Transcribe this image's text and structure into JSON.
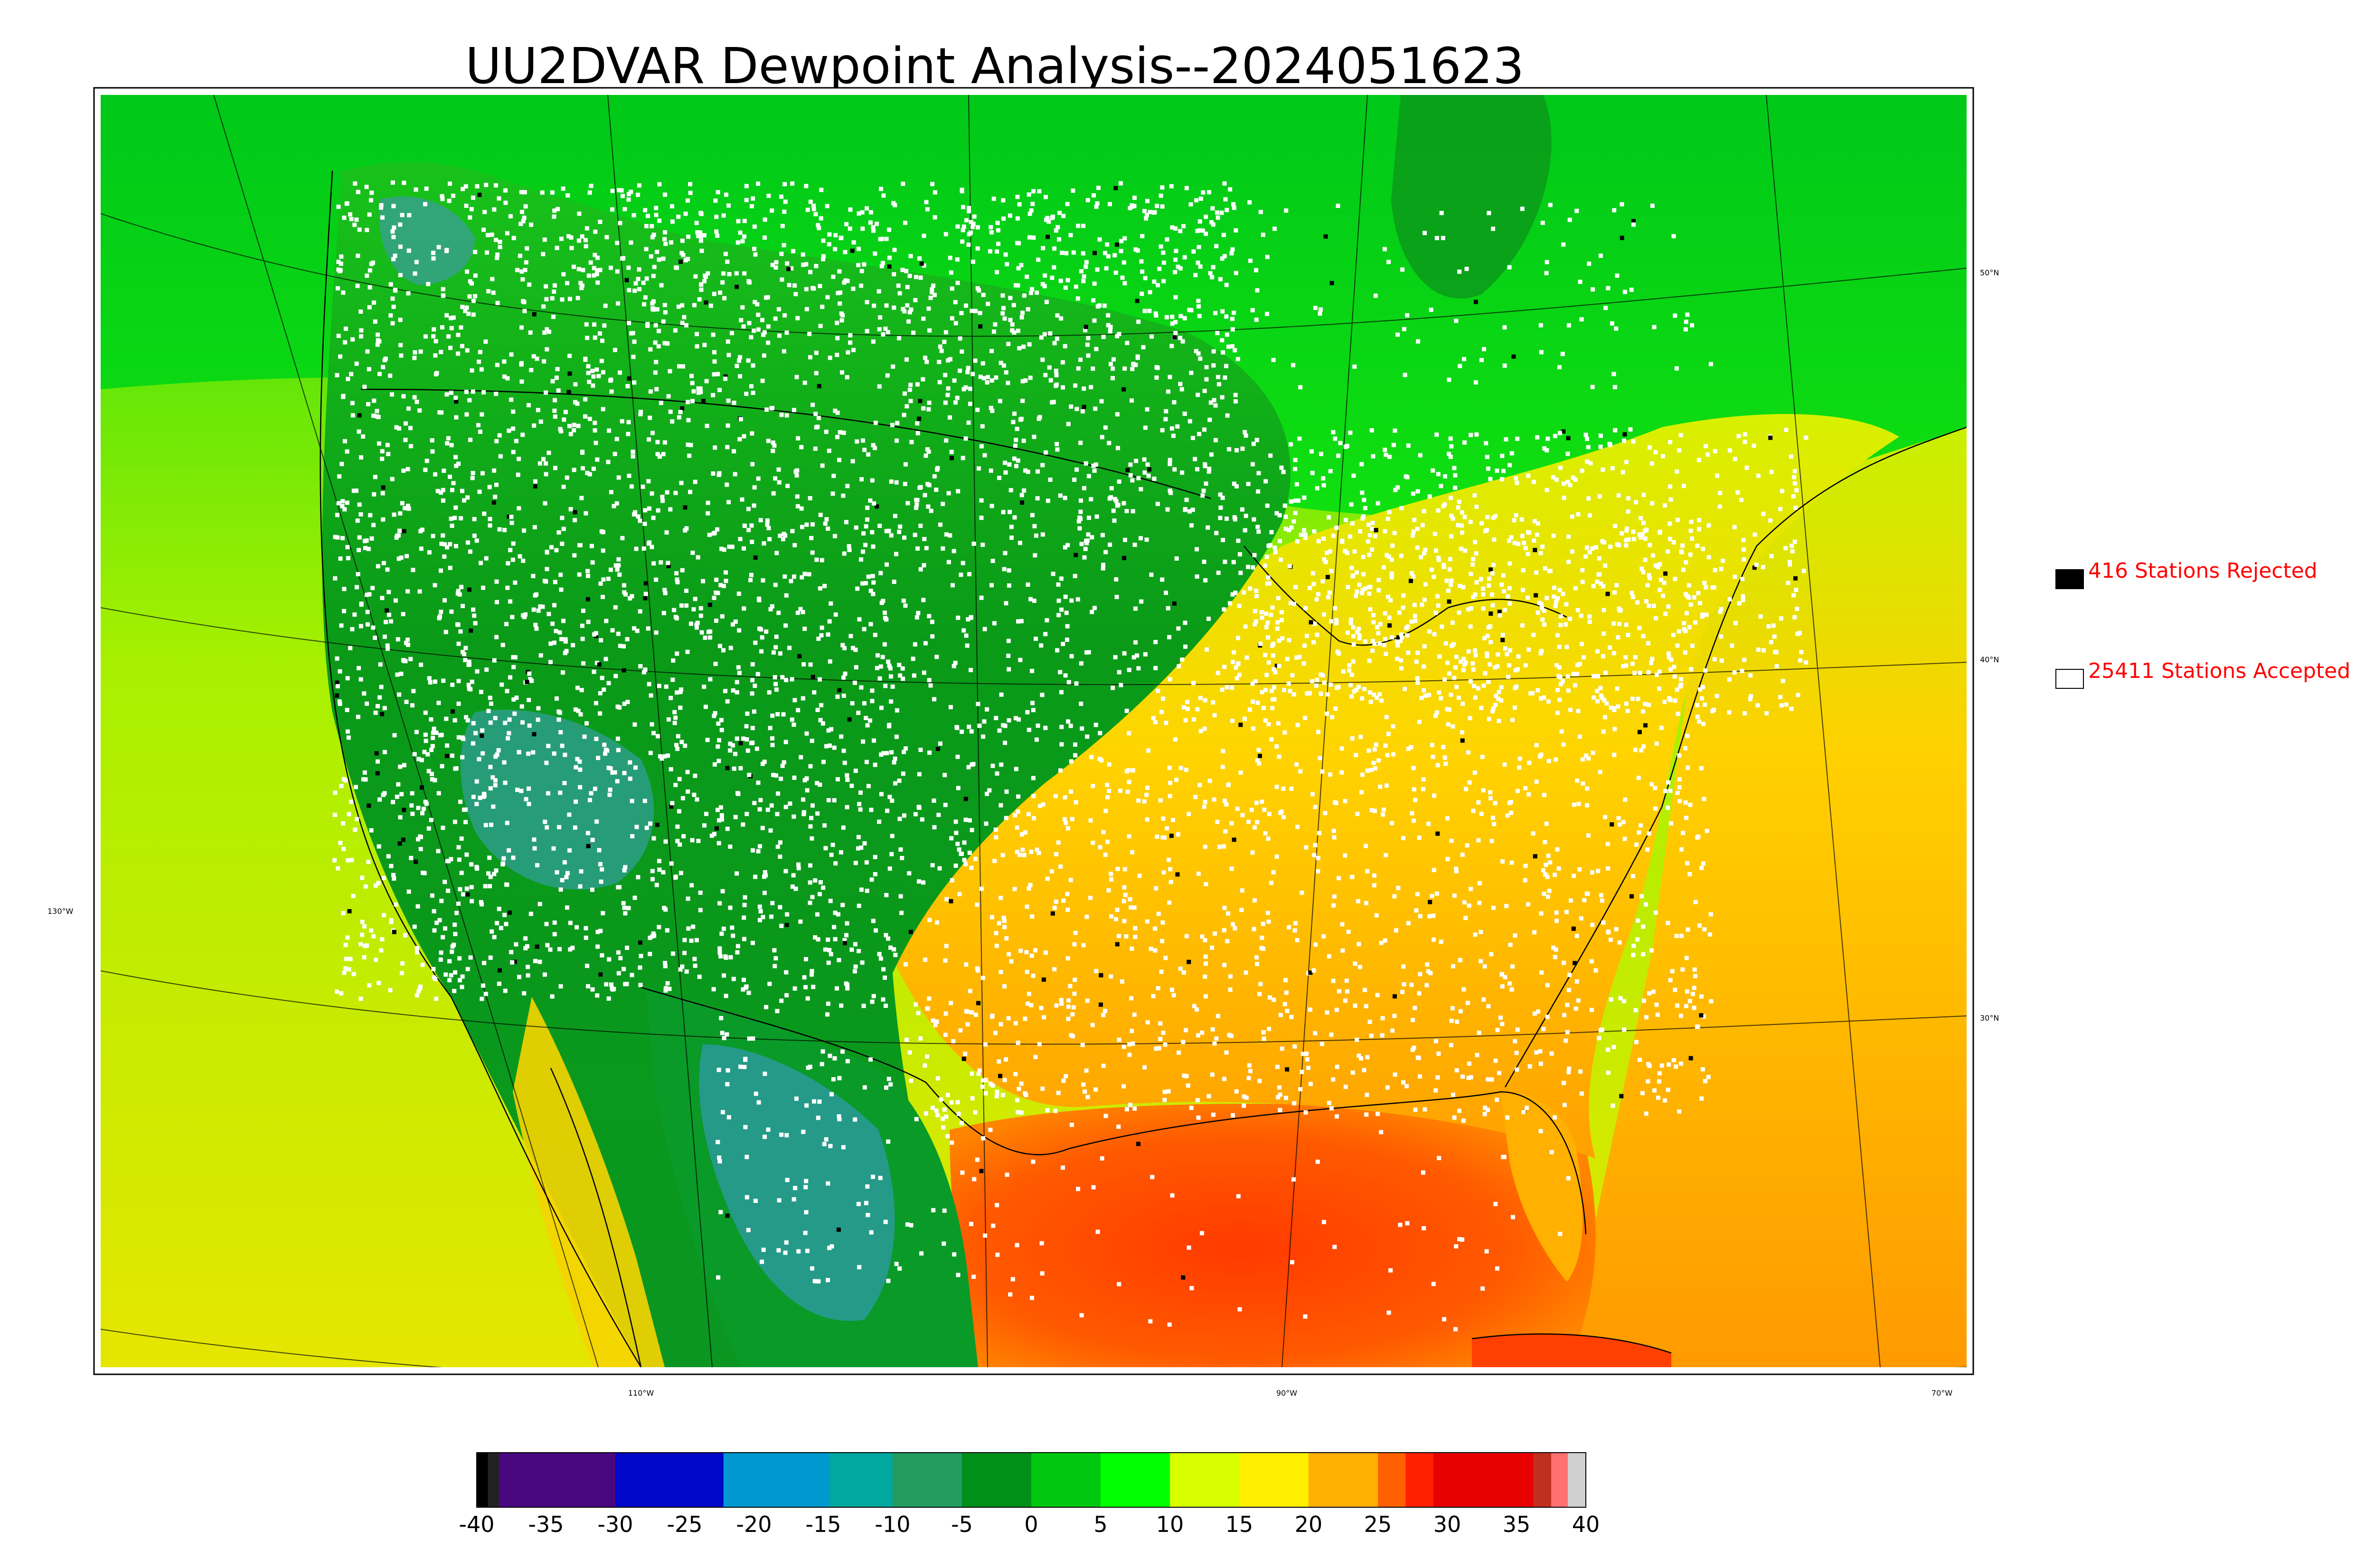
{
  "title": "UU2DVAR Dewpoint Analysis--2024051623",
  "colors": {
    "legend_text": "#ff0000",
    "rejected_marker": "#000000",
    "accepted_marker": "#ffffff",
    "frame": "#000000"
  },
  "legend": {
    "rejected": "416 Stations Rejected",
    "accepted": "25411 Stations Accepted"
  },
  "lat_labels": [
    "50°N",
    "40°N",
    "30°N"
  ],
  "lon_labels": [
    "130°W",
    "110°W",
    "90°W",
    "70°W"
  ],
  "colorbar": {
    "ticks": [
      "-40",
      "-35",
      "-30",
      "-25",
      "-20",
      "-15",
      "-10",
      "-5",
      "0",
      "5",
      "10",
      "15",
      "20",
      "25",
      "30",
      "35",
      "40"
    ],
    "range": [
      -40,
      40
    ],
    "segments": [
      {
        "from": -40,
        "to": -39.2,
        "color": "#000000"
      },
      {
        "from": -39.2,
        "to": -38.4,
        "color": "#222222"
      },
      {
        "from": -38.4,
        "to": -30,
        "color": "#4a0880"
      },
      {
        "from": -30,
        "to": -22.2,
        "color": "#0008c8"
      },
      {
        "from": -22.2,
        "to": -14.6,
        "color": "#0098d0"
      },
      {
        "from": -14.6,
        "to": -10,
        "color": "#00a8a0"
      },
      {
        "from": -10,
        "to": -5,
        "color": "#229c60"
      },
      {
        "from": -5,
        "to": 0,
        "color": "#00901a"
      },
      {
        "from": 0,
        "to": 5,
        "color": "#00c810"
      },
      {
        "from": 5,
        "to": 10,
        "color": "#00ff00"
      },
      {
        "from": 10,
        "to": 15,
        "color": "#d8ff00"
      },
      {
        "from": 15,
        "to": 20,
        "color": "#ffee00"
      },
      {
        "from": 20,
        "to": 25,
        "color": "#ffb000"
      },
      {
        "from": 25,
        "to": 27,
        "color": "#ff6000"
      },
      {
        "from": 27,
        "to": 29,
        "color": "#ff2000"
      },
      {
        "from": 29,
        "to": 36.2,
        "color": "#e80000"
      },
      {
        "from": 36.2,
        "to": 37.5,
        "color": "#c03020"
      },
      {
        "from": 37.5,
        "to": 38.7,
        "color": "#ff7070"
      },
      {
        "from": 38.7,
        "to": 40,
        "color": "#d0d0d0"
      }
    ]
  }
}
